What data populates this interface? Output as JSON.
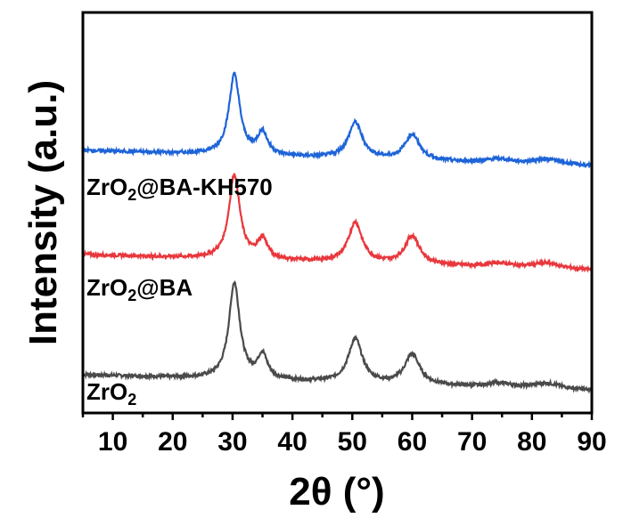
{
  "chart_data": {
    "type": "line",
    "title": "",
    "xlabel": "2θ (°)",
    "ylabel": "Intensity (a.u.)",
    "xlim": [
      5,
      90
    ],
    "x_ticks": [
      10,
      20,
      30,
      40,
      50,
      60,
      70,
      80,
      90
    ],
    "y_ticks": [],
    "grid": false,
    "legend": "inline labels above each curve",
    "series": [
      {
        "name": "ZrO2",
        "label_main": "ZrO",
        "label_sub": "2",
        "label_tail": "",
        "color": "#4a4a4a",
        "offset": 0,
        "peaks": [
          {
            "two_theta": 30.3,
            "height": 120,
            "width": 1.1
          },
          {
            "two_theta": 35.0,
            "height": 30,
            "width": 1.0
          },
          {
            "two_theta": 50.5,
            "height": 55,
            "width": 1.4
          },
          {
            "two_theta": 60.0,
            "height": 38,
            "width": 1.5
          },
          {
            "two_theta": 74.5,
            "height": 5,
            "width": 2.5
          },
          {
            "two_theta": 82.5,
            "height": 7,
            "width": 3.0
          }
        ]
      },
      {
        "name": "ZrO2@BA",
        "label_main": "ZrO",
        "label_sub": "2",
        "label_tail": "@BA",
        "color": "#e8383d",
        "offset": 150,
        "peaks": [
          {
            "two_theta": 30.3,
            "height": 105,
            "width": 1.1
          },
          {
            "two_theta": 35.0,
            "height": 25,
            "width": 1.0
          },
          {
            "two_theta": 50.5,
            "height": 50,
            "width": 1.4
          },
          {
            "two_theta": 60.0,
            "height": 35,
            "width": 1.5
          },
          {
            "two_theta": 74.5,
            "height": 5,
            "width": 2.5
          },
          {
            "two_theta": 82.5,
            "height": 7,
            "width": 3.0
          }
        ]
      },
      {
        "name": "ZrO2@BA-KH570",
        "label_main": "ZrO",
        "label_sub": "2",
        "label_tail": "@BA-KH570",
        "color": "#1e64d8",
        "offset": 280,
        "peaks": [
          {
            "two_theta": 30.3,
            "height": 100,
            "width": 1.1
          },
          {
            "two_theta": 35.0,
            "height": 28,
            "width": 1.0
          },
          {
            "two_theta": 50.5,
            "height": 45,
            "width": 1.4
          },
          {
            "two_theta": 60.0,
            "height": 32,
            "width": 1.5
          },
          {
            "two_theta": 74.5,
            "height": 5,
            "width": 2.5
          },
          {
            "two_theta": 82.5,
            "height": 7,
            "width": 3.0
          }
        ]
      }
    ],
    "baseline": {
      "start": 20,
      "end": 0
    },
    "ylim": [
      0,
      450
    ]
  }
}
